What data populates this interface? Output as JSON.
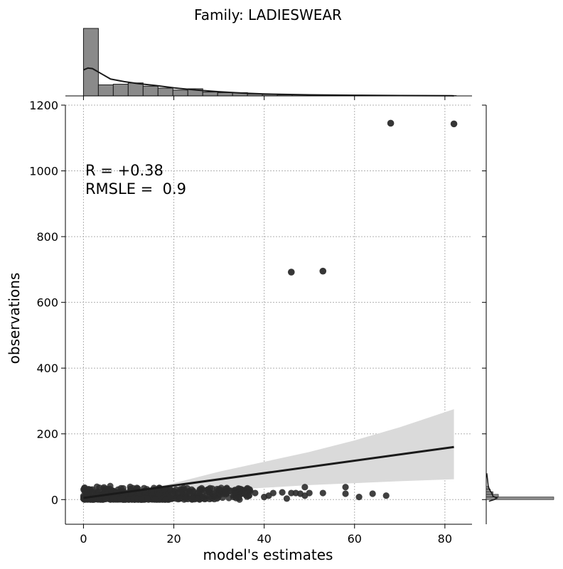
{
  "chart_data": {
    "type": "scatter",
    "title": "Family: LADIESWEAR",
    "xlabel": "model's estimates",
    "ylabel": "observations",
    "xlim": [
      -4,
      86
    ],
    "ylim": [
      -75,
      1200
    ],
    "x_ticks": [
      0,
      20,
      40,
      60,
      80
    ],
    "y_ticks": [
      0,
      200,
      400,
      600,
      800,
      1000,
      1200
    ],
    "grid": true,
    "annotation_lines": [
      "R = +0.38",
      "RMSLE =  0.9"
    ],
    "point_color": "#2b2b2b",
    "fit_color": "#1a1a1a",
    "band_color": "#dadada",
    "outliers": [
      {
        "x": 68,
        "y": 1145
      },
      {
        "x": 82,
        "y": 1143
      },
      {
        "x": 46,
        "y": 692
      },
      {
        "x": 53,
        "y": 695
      }
    ],
    "sparse_points": [
      {
        "x": 38,
        "y": 20
      },
      {
        "x": 40,
        "y": 8
      },
      {
        "x": 41,
        "y": 12
      },
      {
        "x": 42,
        "y": 20
      },
      {
        "x": 44,
        "y": 22
      },
      {
        "x": 45,
        "y": 3
      },
      {
        "x": 46,
        "y": 20
      },
      {
        "x": 47,
        "y": 20
      },
      {
        "x": 48,
        "y": 18
      },
      {
        "x": 49,
        "y": 38
      },
      {
        "x": 49,
        "y": 12
      },
      {
        "x": 50,
        "y": 20
      },
      {
        "x": 53,
        "y": 20
      },
      {
        "x": 58,
        "y": 38
      },
      {
        "x": 58,
        "y": 18
      },
      {
        "x": 61,
        "y": 8
      },
      {
        "x": 64,
        "y": 18
      },
      {
        "x": 67,
        "y": 12
      }
    ],
    "regression": {
      "x0": 0,
      "y0": 5,
      "x1": 82,
      "y1": 160
    },
    "band_upper": [
      [
        0,
        6
      ],
      [
        10,
        20
      ],
      [
        20,
        50
      ],
      [
        30,
        85
      ],
      [
        40,
        115
      ],
      [
        50,
        145
      ],
      [
        60,
        180
      ],
      [
        70,
        220
      ],
      [
        82,
        275
      ]
    ],
    "band_lower": [
      [
        0,
        4
      ],
      [
        10,
        10
      ],
      [
        20,
        18
      ],
      [
        30,
        28
      ],
      [
        40,
        36
      ],
      [
        50,
        44
      ],
      [
        60,
        50
      ],
      [
        70,
        56
      ],
      [
        82,
        62
      ]
    ],
    "top_histogram": {
      "bin_edges_start": 0,
      "bin_width": 3.3,
      "counts": [
        520,
        85,
        90,
        100,
        75,
        60,
        45,
        55,
        30,
        25,
        25,
        15,
        12,
        8,
        8,
        6,
        5,
        5,
        5,
        4,
        4,
        3,
        3,
        2,
        2
      ],
      "kde": [
        [
          0,
          200
        ],
        [
          1,
          215
        ],
        [
          2,
          210
        ],
        [
          4,
          170
        ],
        [
          6,
          130
        ],
        [
          9,
          110
        ],
        [
          12,
          95
        ],
        [
          16,
          80
        ],
        [
          20,
          62
        ],
        [
          25,
          45
        ],
        [
          30,
          32
        ],
        [
          35,
          22
        ],
        [
          40,
          15
        ],
        [
          50,
          8
        ],
        [
          60,
          5
        ],
        [
          70,
          3
        ],
        [
          82,
          1
        ]
      ]
    },
    "right_histogram": {
      "bin_width": 8,
      "counts": [
        {
          "y": 0,
          "w": 1
        },
        {
          "y": 8,
          "w": 0.18
        },
        {
          "y": 16,
          "w": 0.1
        },
        {
          "y": 24,
          "w": 0.06
        },
        {
          "y": 32,
          "w": 0.04
        }
      ],
      "kde": [
        [
          -5,
          0.02
        ],
        [
          0,
          0.06
        ],
        [
          5,
          0.08
        ],
        [
          10,
          0.05
        ],
        [
          20,
          0.04
        ],
        [
          30,
          0.025
        ],
        [
          40,
          0.015
        ],
        [
          60,
          0.01
        ],
        [
          80,
          0.004
        ]
      ]
    }
  }
}
